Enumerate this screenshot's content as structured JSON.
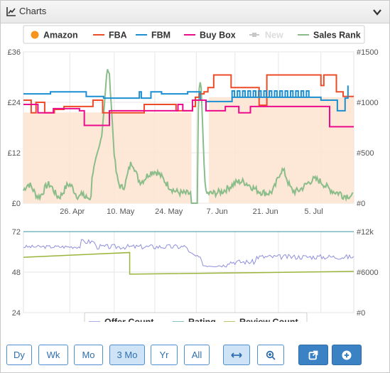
{
  "panel": {
    "title": "Charts"
  },
  "legend_top": [
    {
      "label": "Amazon",
      "color": "#f7941d",
      "shape": "dot",
      "disabled": false
    },
    {
      "label": "FBA",
      "color": "#ee4b28",
      "shape": "line",
      "disabled": false
    },
    {
      "label": "FBM",
      "color": "#1b8fd2",
      "shape": "line",
      "disabled": false
    },
    {
      "label": "Buy Box",
      "color": "#ec0b8d",
      "shape": "line",
      "disabled": false
    },
    {
      "label": "New",
      "color": "#c8c8c8",
      "shape": "square",
      "disabled": true
    },
    {
      "label": "Sales Rank",
      "color": "#8bbd8b",
      "shape": "line",
      "disabled": false
    }
  ],
  "legend_bottom": [
    {
      "label": "Offer Count",
      "color": "#8f8fdd"
    },
    {
      "label": "Rating",
      "color": "#5aaab2"
    },
    {
      "label": "Review Count",
      "color": "#9bb53a"
    }
  ],
  "buttons": [
    {
      "label": "Dy",
      "active": false
    },
    {
      "label": "Wk",
      "active": false
    },
    {
      "label": "Mo",
      "active": false
    },
    {
      "label": "3 Mo",
      "active": true
    },
    {
      "label": "Yr",
      "active": false
    },
    {
      "label": "All",
      "active": false
    }
  ],
  "chart_data": [
    {
      "type": "line",
      "x": {
        "ticks": [
          "26. Apr",
          "10. May",
          "24. May",
          "7. Jun",
          "21. Jun",
          "5. Jul"
        ]
      },
      "y_left": {
        "ticks": [
          "£0",
          "£12",
          "£24",
          "£36"
        ],
        "range": [
          0,
          36
        ]
      },
      "y_right": {
        "ticks": [
          "#0",
          "#500",
          "#1000",
          "#1500"
        ],
        "range": [
          0,
          1500
        ]
      },
      "series": [
        {
          "name": "FBA",
          "color": "#ee4b28",
          "points": [
            [
              0,
              24.5
            ],
            [
              0.8,
              24.5
            ],
            [
              0.8,
              21.5
            ],
            [
              1.3,
              21.5
            ],
            [
              1.3,
              24
            ],
            [
              2.2,
              24
            ],
            [
              2.2,
              21.5
            ],
            [
              3.2,
              21.5
            ],
            [
              3.2,
              22.3
            ],
            [
              4.2,
              22.3
            ],
            [
              4.2,
              23
            ],
            [
              7.2,
              23
            ],
            [
              7.2,
              24.5
            ],
            [
              8.2,
              24.5
            ],
            [
              8.2,
              21.5
            ],
            [
              12.5,
              21.5
            ],
            [
              12.5,
              23.5
            ],
            [
              15.8,
              23.5
            ],
            [
              15.8,
              22
            ],
            [
              17.5,
              22
            ],
            [
              17.5,
              23
            ],
            [
              17.8,
              23
            ],
            [
              17.8,
              25.2
            ],
            [
              18.2,
              25.2
            ],
            [
              18.2,
              26
            ],
            [
              18.7,
              26
            ],
            [
              18.7,
              26.5
            ],
            [
              19.1,
              26.5
            ],
            [
              19.1,
              27.5
            ],
            [
              19.7,
              27.5
            ],
            [
              19.7,
              30.5
            ],
            [
              21.5,
              30.5
            ],
            [
              21.5,
              27.5
            ],
            [
              24.4,
              27.5
            ],
            [
              24.4,
              23.3
            ],
            [
              25.2,
              23.3
            ],
            [
              25.2,
              30.5
            ],
            [
              30.8,
              30.5
            ],
            [
              30.8,
              28
            ],
            [
              31.1,
              28
            ],
            [
              31.1,
              30.5
            ],
            [
              32.4,
              30.5
            ],
            [
              32.4,
              26.5
            ],
            [
              33.1,
              26.5
            ],
            [
              33.1,
              25.4
            ],
            [
              34.2,
              25.4
            ]
          ]
        },
        {
          "name": "FBM",
          "color": "#1b8fd2",
          "points": [
            [
              0,
              26
            ],
            [
              2.8,
              26
            ],
            [
              2.8,
              26.5
            ],
            [
              6.5,
              26.5
            ],
            [
              6.5,
              25.4
            ],
            [
              8.3,
              25.4
            ],
            [
              8.3,
              25
            ],
            [
              12,
              25
            ],
            [
              12,
              26.5
            ],
            [
              12.2,
              26.5
            ],
            [
              12.2,
              25
            ],
            [
              13.2,
              25
            ],
            [
              13.2,
              26.5
            ],
            [
              14.3,
              26.5
            ],
            [
              14.3,
              26
            ],
            [
              17,
              26
            ],
            [
              17,
              26.5
            ],
            [
              18.3,
              26.5
            ],
            [
              18.3,
              24.5
            ],
            [
              18.9,
              24.5
            ],
            [
              18.9,
              24.2
            ],
            [
              21.6,
              24.2
            ],
            [
              21.6,
              25.2
            ],
            [
              30.8,
              25.2
            ],
            [
              30.8,
              24.5
            ],
            [
              32.5,
              24.5
            ],
            [
              32.5,
              22
            ],
            [
              33.3,
              22
            ],
            [
              33.3,
              25
            ],
            [
              33.6,
              25
            ],
            [
              33.6,
              28
            ]
          ]
        },
        {
          "name": "Buy Box",
          "color": "#ec0b8d",
          "points": [
            [
              0,
              23.5
            ],
            [
              1.5,
              23.5
            ],
            [
              1.5,
              21.5
            ],
            [
              3.1,
              21.5
            ],
            [
              3.1,
              22.5
            ],
            [
              5.8,
              22.5
            ],
            [
              5.8,
              22
            ],
            [
              6.3,
              22
            ],
            [
              6.3,
              18.5
            ],
            [
              8.9,
              18.5
            ],
            [
              8.9,
              22
            ],
            [
              16,
              22
            ],
            [
              16,
              23.5
            ],
            [
              16.5,
              23.5
            ],
            [
              16.5,
              22
            ],
            [
              17.5,
              22
            ],
            [
              17.5,
              24.5
            ],
            [
              18.9,
              24.5
            ],
            [
              18.9,
              22
            ],
            [
              20.9,
              22
            ],
            [
              20.9,
              23
            ],
            [
              22.3,
              23
            ],
            [
              22.3,
              21.5
            ],
            [
              23.5,
              21.5
            ],
            [
              23.5,
              23
            ],
            [
              31.7,
              23
            ],
            [
              31.7,
              18.2
            ],
            [
              34.2,
              18.2
            ]
          ]
        }
      ]
    },
    {
      "type": "line",
      "x": {
        "ticks": []
      },
      "y_left": {
        "ticks": [
          "24",
          "48",
          "72"
        ],
        "range": [
          24,
          72
        ]
      },
      "y_right": {
        "ticks": [
          "#0",
          "#6000",
          "#12k"
        ],
        "range": [
          0,
          12000
        ]
      },
      "series": [
        {
          "name": "Offer Count",
          "color": "#8f8fdd"
        },
        {
          "name": "Rating",
          "color": "#5aaab2",
          "constant": 72
        },
        {
          "name": "Review Count",
          "color": "#9bb53a",
          "points": [
            [
              0,
              8200
            ],
            [
              11,
              8900
            ],
            [
              11,
              5700
            ],
            [
              34.2,
              6100
            ]
          ]
        }
      ]
    }
  ]
}
